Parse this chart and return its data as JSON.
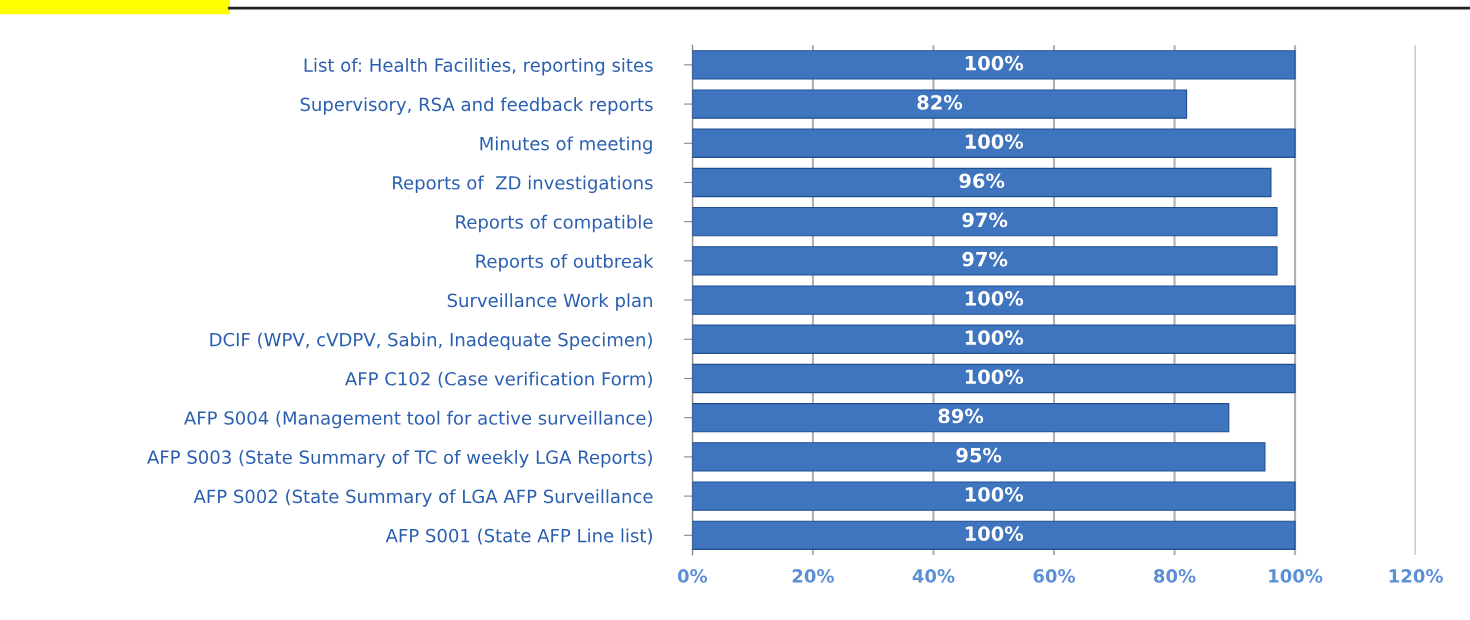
{
  "chart_data": {
    "type": "bar",
    "orientation": "horizontal",
    "categories": [
      "List of: Health Facilities, reporting sites",
      "Supervisory, RSA and feedback reports",
      "Minutes of meeting",
      "Reports of  ZD investigations",
      "Reports of compatible",
      "Reports of outbreak",
      "Surveillance Work plan",
      "DCIF (WPV, cVDPV, Sabin, Inadequate Specimen)",
      "AFP C102 (Case verification Form)",
      "AFP S004 (Management tool for active surveillance)",
      "AFP S003 (State Summary of TC of weekly LGA Reports)",
      "AFP S002 (State Summary of LGA AFP Surveillance",
      "AFP S001 (State AFP Line list)"
    ],
    "values": [
      100,
      82,
      100,
      96,
      97,
      97,
      100,
      100,
      100,
      89,
      95,
      100,
      100
    ],
    "value_labels": [
      "100%",
      "82%",
      "100%",
      "96%",
      "97%",
      "97%",
      "100%",
      "100%",
      "100%",
      "89%",
      "95%",
      "100%",
      "100%"
    ],
    "color": "#3f74bf",
    "xlim": [
      0,
      120
    ],
    "xticks": [
      {
        "value": 0,
        "label": "0%"
      },
      {
        "value": 20,
        "label": "20%"
      },
      {
        "value": 40,
        "label": "40%"
      },
      {
        "value": 60,
        "label": "60%"
      },
      {
        "value": 80,
        "label": "80%"
      },
      {
        "value": 100,
        "label": "100%"
      },
      {
        "value": 120,
        "label": "120%"
      }
    ],
    "grid": "x"
  }
}
